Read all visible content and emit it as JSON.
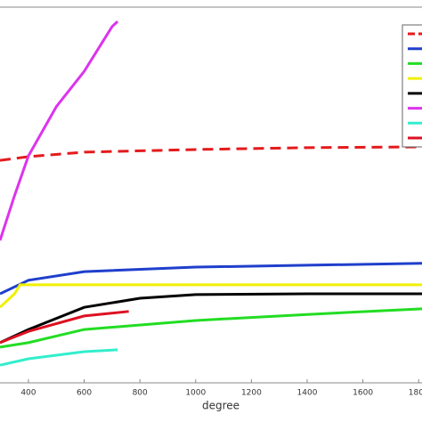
{
  "chart_data": {
    "type": "line",
    "x_label": "degree",
    "xlim": [
      298,
      1812
    ],
    "xticks": [
      400,
      600,
      800,
      1000,
      1200,
      1400,
      1600,
      1800
    ],
    "ylim": [
      0,
      100
    ],
    "legend": "upper right",
    "series": [
      {
        "color": "#e41a1c",
        "style": "dashed",
        "x": [
          298,
          400,
          600,
          1000,
          1400,
          1800
        ],
        "values": [
          59.2,
          60.2,
          61.4,
          62.1,
          62.6,
          62.8
        ]
      },
      {
        "color": "#1f3fcc",
        "style": "solid",
        "x": [
          298,
          400,
          600,
          1000,
          1400,
          1812
        ],
        "values": [
          23.7,
          27.3,
          29.6,
          30.8,
          31.3,
          31.8
        ]
      },
      {
        "color": "#22dd22",
        "style": "solid",
        "x": [
          298,
          400,
          600,
          1000,
          1400,
          1812
        ],
        "values": [
          9.5,
          10.7,
          14.2,
          16.6,
          18.2,
          19.7
        ]
      },
      {
        "color": "#f0f000",
        "style": "solid",
        "x": [
          298,
          350,
          370,
          1812
        ],
        "values": [
          20.1,
          23.7,
          26.1,
          26.1
        ]
      },
      {
        "color": "#000000",
        "style": "solid",
        "x": [
          298,
          400,
          600,
          800,
          1000,
          1400,
          1812
        ],
        "values": [
          10.7,
          14.2,
          20.1,
          22.5,
          23.5,
          23.7,
          23.7
        ]
      },
      {
        "color": "#dd33ee",
        "style": "solid",
        "x": [
          298,
          350,
          400,
          500,
          600,
          700,
          720
        ],
        "values": [
          37.9,
          49.8,
          60.4,
          73.5,
          82.9,
          94.8,
          96.2
        ]
      },
      {
        "color": "#33eecc",
        "style": "solid",
        "x": [
          298,
          400,
          600,
          720
        ],
        "values": [
          4.7,
          6.4,
          8.3,
          8.8
        ]
      },
      {
        "color": "#dd1122",
        "style": "solid",
        "x": [
          298,
          400,
          600,
          760
        ],
        "values": [
          10.7,
          13.7,
          17.8,
          19.0
        ]
      }
    ]
  }
}
